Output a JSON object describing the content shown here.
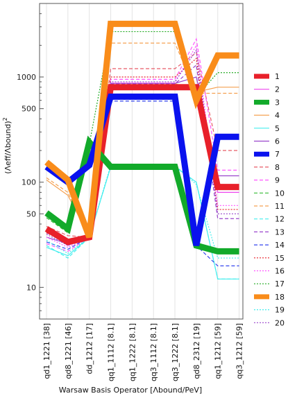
{
  "chart_data": {
    "type": "line",
    "xlabel": "Warsaw Basis Operator [Λbound/PeV]",
    "ylabel_main": "(Λeff/Λbound)",
    "ylabel_sub": "eff",
    "ylabel_sub2": "bound",
    "ylabel_sup": "2",
    "y_scale": "log",
    "ylim": [
      5,
      5000
    ],
    "y_ticks": [
      10,
      50,
      100,
      500,
      1000
    ],
    "y_tick_labels": [
      "10",
      "50",
      "100",
      "500",
      "1000"
    ],
    "grid": "vertical",
    "legend_position": "right",
    "categories": [
      "qd1_1221 [38]",
      "qd8_1221 [46]",
      "dd_1212 [17]",
      "qq1_1112 [8.1]",
      "qq1_1222 [8.1]",
      "qq3_1112 [8.1]",
      "qq3_1222 [8.1]",
      "qd8_2312 [19]",
      "qq1_1212 [59]",
      "qq3_1212 [59]"
    ],
    "series": [
      {
        "name": "1",
        "color": "#e8202a",
        "style": "thick",
        "values": [
          36,
          27,
          30,
          800,
          800,
          800,
          800,
          800,
          90,
          90
        ]
      },
      {
        "name": "2",
        "color": "#ee44ee",
        "style": "solid",
        "values": [
          34,
          25,
          30,
          820,
          820,
          820,
          820,
          760,
          80,
          80
        ]
      },
      {
        "name": "3",
        "color": "#12aa2a",
        "style": "thick",
        "values": [
          51,
          36,
          240,
          140,
          140,
          140,
          140,
          25,
          22,
          22
        ]
      },
      {
        "name": "4",
        "color": "#f5a050",
        "style": "solid",
        "values": [
          105,
          75,
          30,
          870,
          870,
          870,
          870,
          720,
          800,
          800
        ]
      },
      {
        "name": "5",
        "color": "#44eeee",
        "style": "solid",
        "values": [
          24,
          20,
          30,
          140,
          140,
          140,
          140,
          100,
          12,
          12
        ]
      },
      {
        "name": "6",
        "color": "#9944cc",
        "style": "solid",
        "values": [
          30,
          26,
          30,
          870,
          870,
          870,
          870,
          1000,
          115,
          115
        ]
      },
      {
        "name": "7",
        "color": "#0a12ee",
        "style": "thick",
        "values": [
          140,
          100,
          145,
          650,
          650,
          650,
          650,
          25,
          270,
          270
        ]
      },
      {
        "name": "8",
        "color": "#e85a66",
        "style": "dashed",
        "values": [
          38,
          31,
          30,
          1200,
          1200,
          1200,
          1200,
          1700,
          200,
          200
        ]
      },
      {
        "name": "9",
        "color": "#ff55ff",
        "style": "dashed",
        "values": [
          26,
          22,
          30,
          950,
          950,
          950,
          950,
          2300,
          130,
          130
        ]
      },
      {
        "name": "10",
        "color": "#33bb33",
        "style": "dashed",
        "values": [
          46,
          33,
          220,
          140,
          140,
          140,
          140,
          25,
          22,
          22
        ]
      },
      {
        "name": "11",
        "color": "#f5a050",
        "style": "dashed",
        "values": [
          110,
          80,
          30,
          2100,
          2100,
          2100,
          2100,
          700,
          700,
          700
        ]
      },
      {
        "name": "12",
        "color": "#44eeee",
        "style": "dashed",
        "values": [
          25,
          19,
          30,
          140,
          140,
          140,
          140,
          100,
          12,
          12
        ]
      },
      {
        "name": "13",
        "color": "#9944cc",
        "style": "dashed",
        "values": [
          33,
          27,
          30,
          860,
          860,
          860,
          860,
          1300,
          45,
          45
        ]
      },
      {
        "name": "14",
        "color": "#3344ee",
        "style": "dashed",
        "values": [
          27,
          23,
          30,
          590,
          590,
          590,
          590,
          25,
          16,
          16
        ]
      },
      {
        "name": "15",
        "color": "#e8202a",
        "style": "dotted",
        "values": [
          33,
          26,
          30,
          1000,
          1000,
          1000,
          1000,
          1500,
          55,
          55
        ]
      },
      {
        "name": "16",
        "color": "#ff55ff",
        "style": "dotted",
        "values": [
          30,
          24,
          30,
          880,
          880,
          880,
          880,
          2000,
          60,
          60
        ]
      },
      {
        "name": "17",
        "color": "#22aa22",
        "style": "dotted",
        "values": [
          48,
          35,
          230,
          2700,
          2700,
          2700,
          2700,
          650,
          1100,
          1100
        ]
      },
      {
        "name": "18",
        "color": "#f98c1a",
        "style": "thick",
        "values": [
          155,
          105,
          30,
          3200,
          3200,
          3200,
          3200,
          600,
          1600,
          1600
        ]
      },
      {
        "name": "19",
        "color": "#44eeee",
        "style": "dotted",
        "values": [
          28,
          21,
          30,
          145,
          145,
          145,
          145,
          95,
          19,
          19
        ]
      },
      {
        "name": "20",
        "color": "#9944cc",
        "style": "dotted",
        "values": [
          32,
          25,
          30,
          900,
          900,
          900,
          900,
          1800,
          50,
          50
        ]
      }
    ]
  }
}
